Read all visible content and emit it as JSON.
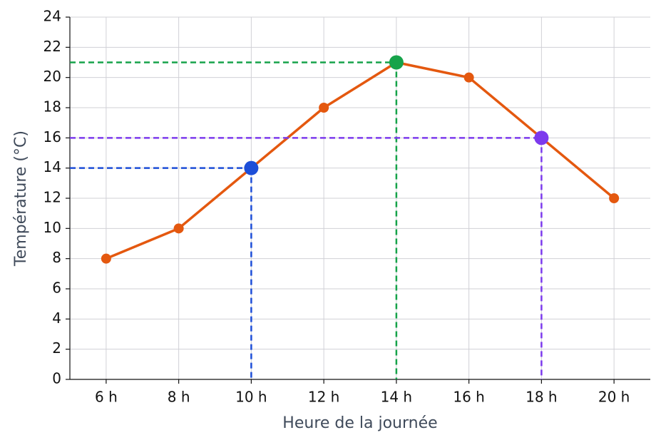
{
  "chart_data": {
    "type": "line",
    "x_label": "Heure de la journée",
    "y_label": "Température (°C)",
    "categories": [
      "6 h",
      "8 h",
      "10 h",
      "12 h",
      "14 h",
      "16 h",
      "18 h",
      "20 h"
    ],
    "series": [
      {
        "name": "Température",
        "color": "#e4580f",
        "values": [
          8,
          10,
          14,
          18,
          21,
          20,
          16,
          12
        ]
      }
    ],
    "highlights": [
      {
        "category": "10 h",
        "color": "#1d4ed8"
      },
      {
        "category": "14 h",
        "color": "#16a34a"
      },
      {
        "category": "18 h",
        "color": "#7c3aed"
      }
    ],
    "ylim": [
      0,
      24
    ],
    "yticks": [
      0,
      2,
      4,
      6,
      8,
      10,
      12,
      14,
      16,
      18,
      20,
      22,
      24
    ],
    "grid": true,
    "legend": false
  }
}
